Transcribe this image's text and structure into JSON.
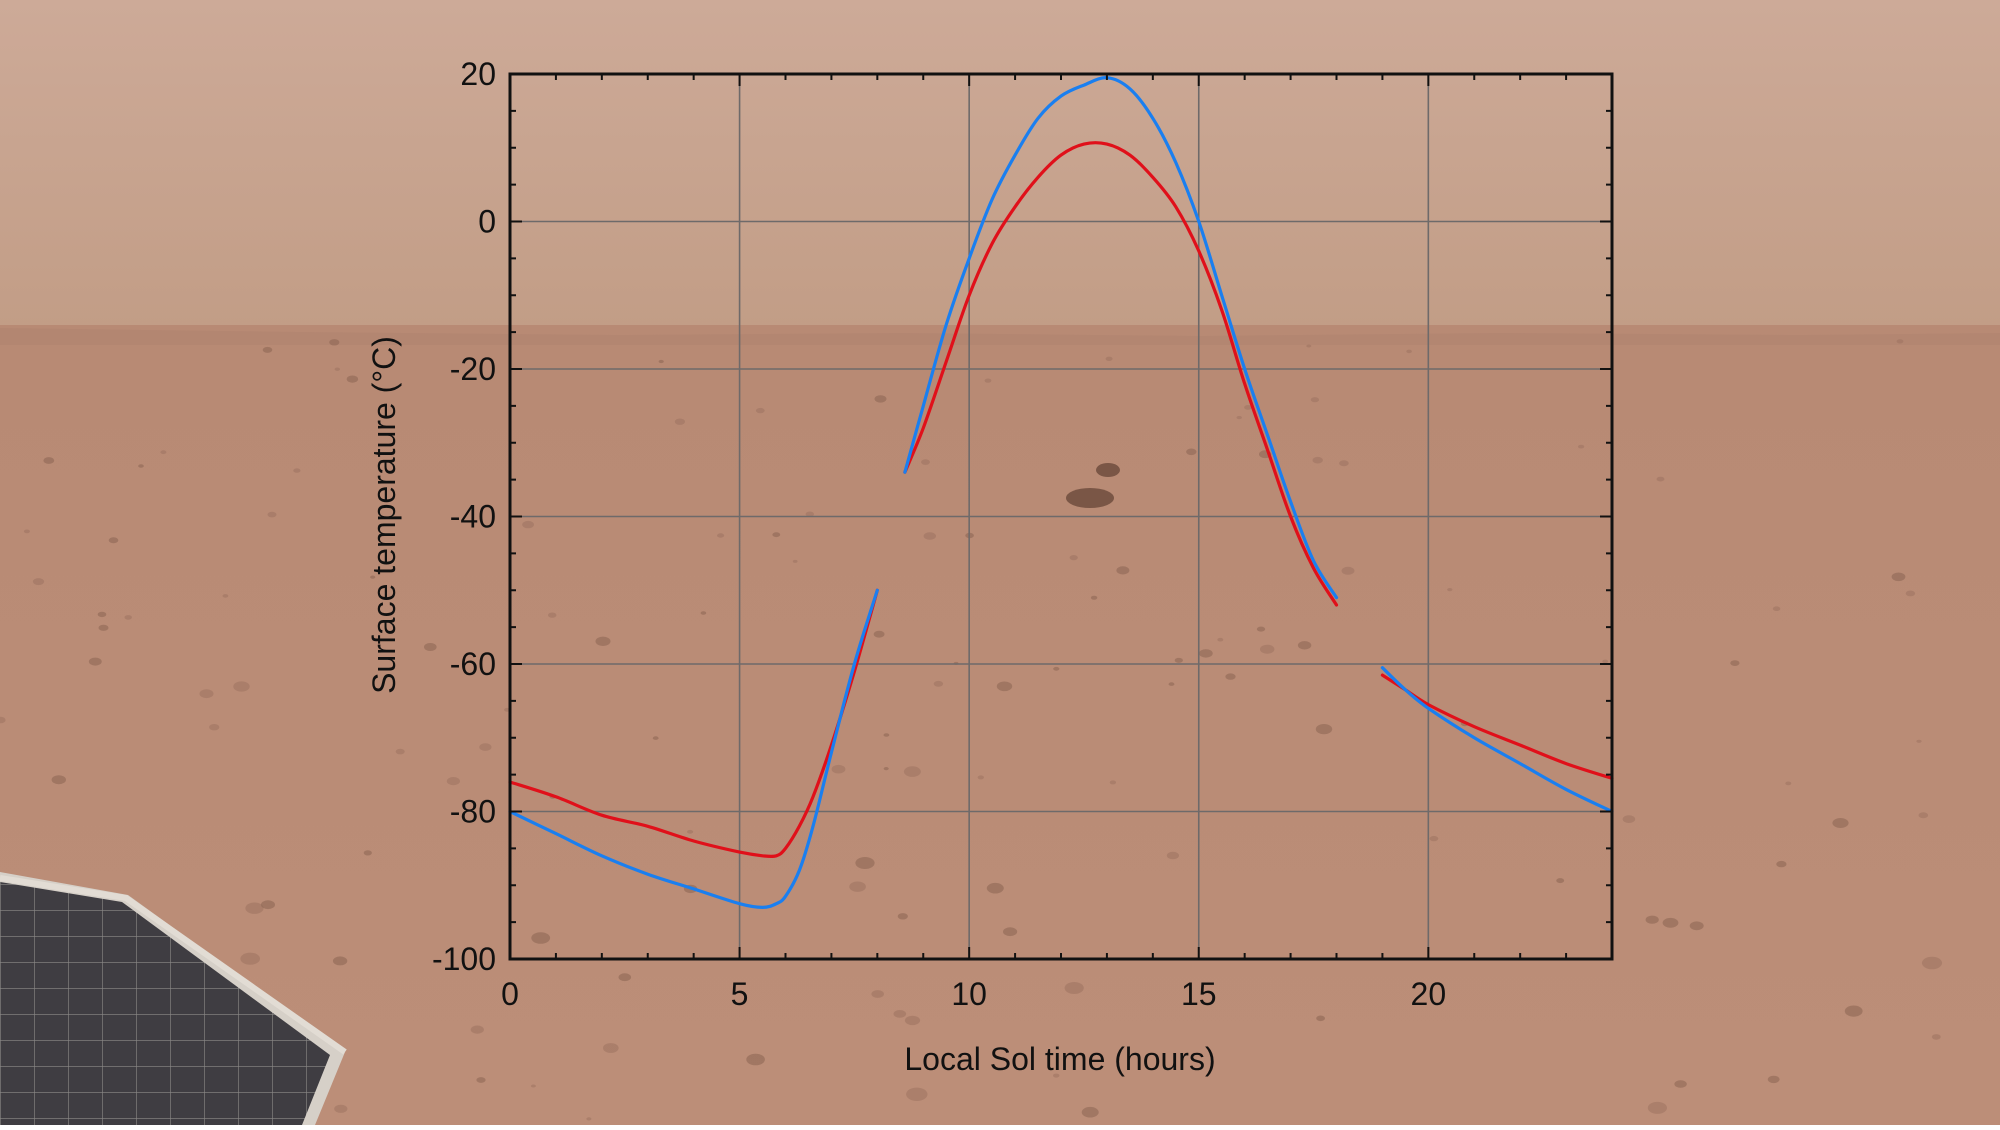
{
  "chart_data": {
    "type": "line",
    "title": "",
    "xlabel": "Local Sol time (hours)",
    "ylabel": "Surface temperature (°C)",
    "xlim": [
      0,
      24
    ],
    "ylim": [
      -100,
      20
    ],
    "xticks": [
      0,
      5,
      10,
      15,
      20
    ],
    "yticks": [
      -100,
      -80,
      -60,
      -40,
      -20,
      0,
      20
    ],
    "grid": true,
    "legend": "none",
    "series": [
      {
        "color": "#e0101a",
        "segments": [
          {
            "x": [
              0,
              1,
              2,
              3,
              4,
              5,
              5.5,
              5.8,
              6,
              6.3,
              6.6,
              7,
              7.5,
              8
            ],
            "y": [
              -76,
              -78,
              -80.5,
              -82,
              -84,
              -85.5,
              -86,
              -86,
              -85,
              -82,
              -78,
              -71,
              -61,
              -50
            ]
          },
          {
            "x": [
              8.6,
              9,
              9.5,
              10,
              10.5,
              11,
              11.5,
              12,
              12.5,
              13,
              13.5,
              14,
              14.5,
              15,
              15.5,
              16,
              16.5,
              17,
              17.5,
              18
            ],
            "y": [
              -34,
              -28,
              -19,
              -10,
              -3,
              2,
              6,
              9,
              10.5,
              10.5,
              9,
              6,
              2,
              -4,
              -12,
              -22,
              -31,
              -40,
              -47,
              -52
            ]
          },
          {
            "x": [
              19,
              19.5,
              20,
              21,
              22,
              23,
              24
            ],
            "y": [
              -61.5,
              -63.5,
              -65.5,
              -68.5,
              -71,
              -73.5,
              -75.5
            ]
          }
        ]
      },
      {
        "color": "#1a7ff0",
        "segments": [
          {
            "x": [
              0,
              1,
              2,
              3,
              4,
              5,
              5.5,
              5.8,
              6,
              6.3,
              6.6,
              7,
              7.5,
              8
            ],
            "y": [
              -80,
              -83,
              -86,
              -88.5,
              -90.5,
              -92.5,
              -93,
              -92.5,
              -91.5,
              -88,
              -82,
              -72,
              -60,
              -50
            ]
          },
          {
            "x": [
              8.6,
              9,
              9.5,
              10,
              10.5,
              11,
              11.5,
              12,
              12.5,
              13,
              13.5,
              14,
              14.5,
              15,
              15.5,
              16,
              16.5,
              17,
              17.5,
              18
            ],
            "y": [
              -34,
              -25,
              -14,
              -5,
              3,
              9,
              14,
              17,
              18.5,
              19.5,
              18,
              14,
              8,
              0,
              -10,
              -20,
              -29,
              -38,
              -46,
              -51
            ]
          },
          {
            "x": [
              19,
              19.5,
              20,
              21,
              22,
              23,
              24
            ],
            "y": [
              -60.5,
              -63.5,
              -66,
              -70,
              -73.5,
              -77,
              -80
            ]
          }
        ]
      }
    ]
  }
}
